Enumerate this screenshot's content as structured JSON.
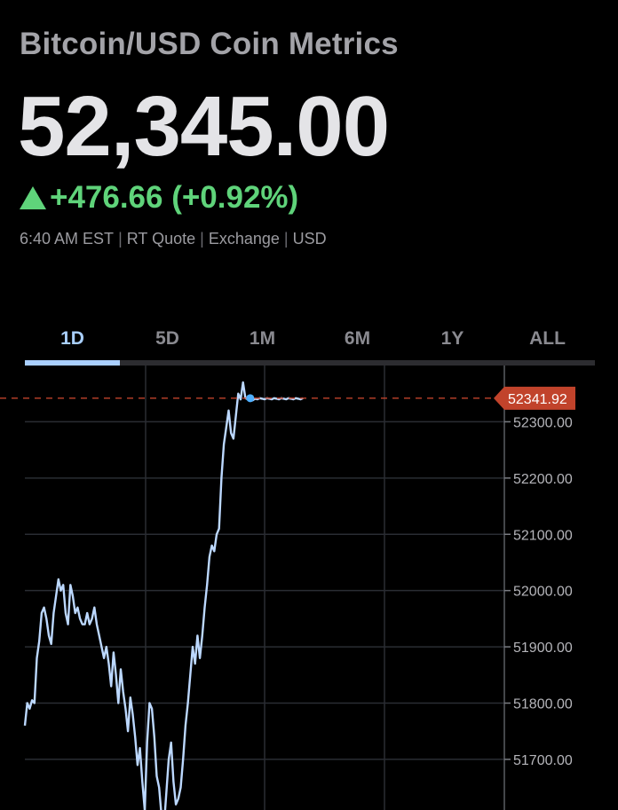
{
  "header": {
    "title": "Bitcoin/USD Coin Metrics",
    "price": "52,345.00",
    "change": "+476.66 (+0.92%)",
    "meta": [
      "6:40 AM EST",
      "RT Quote",
      "Exchange",
      "USD"
    ]
  },
  "tabs": [
    {
      "label": "1D",
      "active": true
    },
    {
      "label": "5D",
      "active": false
    },
    {
      "label": "1M",
      "active": false
    },
    {
      "label": "6M",
      "active": false
    },
    {
      "label": "1Y",
      "active": false
    },
    {
      "label": "ALL",
      "active": false
    }
  ],
  "colors": {
    "background": "#000000",
    "up": "#5fd37a",
    "line": "#bcd8ff",
    "accent": "#a9cfff",
    "current_price_tag": "#c1432b",
    "grid": "#2a2d33"
  },
  "chart_data": {
    "type": "line",
    "y_ticks": [
      "52300.00",
      "52200.00",
      "52100.00",
      "52000.00",
      "51900.00",
      "51800.00",
      "51700.00"
    ],
    "y_tick_values": [
      52300,
      52200,
      52100,
      52000,
      51900,
      51800,
      51700
    ],
    "ylim": [
      51610,
      52400
    ],
    "xlim": [
      0,
      100
    ],
    "current_price_label": "52341.92",
    "current_price": 52341.92,
    "grid": true,
    "series": [
      {
        "x": [
          0,
          0.5,
          1,
          1.5,
          2,
          2.5,
          3,
          3.5,
          4,
          4.5,
          5,
          5.5,
          6,
          6.5,
          7,
          7.5,
          8,
          8.5,
          9,
          9.5,
          10,
          10.5,
          11,
          11.5,
          12,
          12.5,
          13,
          13.5,
          14,
          14.5,
          15,
          15.5,
          16,
          16.5,
          17,
          17.5,
          18,
          18.5,
          19,
          19.5,
          20,
          20.5,
          21,
          21.5,
          22,
          22.5,
          23,
          23.5,
          24,
          24.5,
          25,
          25.5,
          26,
          26.5,
          27,
          27.5,
          28,
          28.5,
          29,
          29.5,
          30,
          30.5,
          31,
          31.5,
          32,
          32.5,
          33,
          33.5,
          34,
          34.5,
          35,
          35.5,
          36,
          36.5,
          37,
          37.5,
          38,
          38.5,
          39,
          39.5,
          40,
          40.5,
          41,
          41.5,
          42,
          42.5,
          43,
          43.5,
          44,
          44.5,
          45,
          45.5,
          46,
          46.5,
          47,
          47.5,
          48,
          48.5,
          49,
          49.5,
          50,
          50.5,
          51,
          51.5,
          52,
          52.5,
          53,
          53.5,
          54,
          54.5,
          55,
          55.5,
          56,
          56.5,
          57,
          57.5,
          58
        ],
        "y": [
          51760,
          51800,
          51790,
          51805,
          51800,
          51880,
          51910,
          51960,
          51970,
          51950,
          51920,
          51905,
          51960,
          51990,
          52020,
          52000,
          52010,
          51960,
          51940,
          52010,
          51990,
          51960,
          51970,
          51950,
          51940,
          51940,
          51960,
          51940,
          51950,
          51970,
          51940,
          51920,
          51900,
          51880,
          51900,
          51870,
          51830,
          51890,
          51850,
          51800,
          51860,
          51820,
          51790,
          51750,
          51810,
          51780,
          51740,
          51690,
          51720,
          51660,
          51610,
          51730,
          51800,
          51790,
          51740,
          51670,
          51650,
          51600,
          51580,
          51640,
          51700,
          51730,
          51660,
          51620,
          51630,
          51650,
          51700,
          51760,
          51800,
          51850,
          51900,
          51870,
          51920,
          51880,
          51920,
          51970,
          52010,
          52060,
          52080,
          52070,
          52100,
          52110,
          52200,
          52260,
          52290,
          52320,
          52280,
          52270,
          52310,
          52350,
          52340,
          52370,
          52342,
          52340,
          52341.92,
          52338,
          52341,
          52340,
          52342,
          52341,
          52340,
          52342,
          52341,
          52340,
          52342,
          52341,
          52340,
          52342,
          52341,
          52340,
          52342,
          52341,
          52340,
          52342,
          52341,
          52340,
          52342
        ]
      }
    ]
  }
}
